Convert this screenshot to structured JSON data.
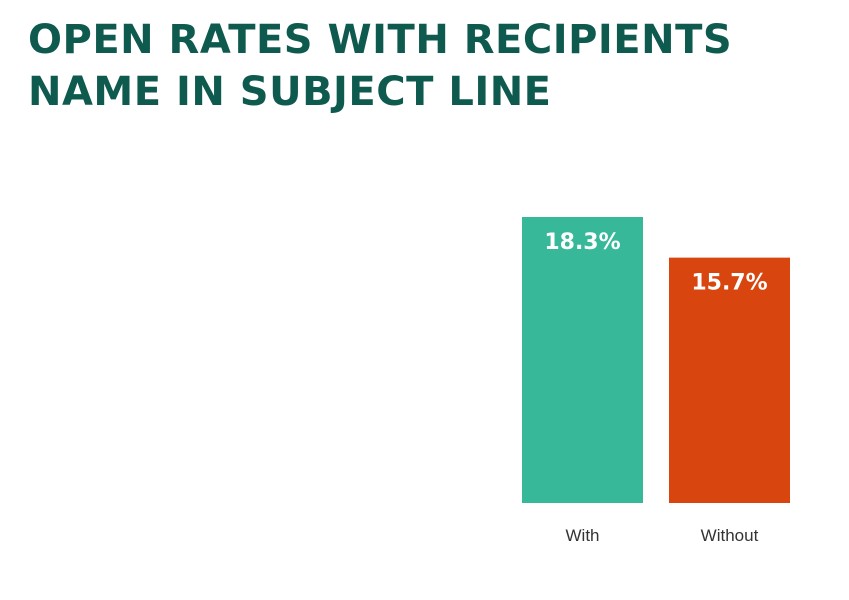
{
  "title_lines": [
    "OPEN RATES WITH RECIPIENTS",
    "NAME IN SUBJECT LINE"
  ],
  "colors": {
    "title": "#0f5a4e",
    "value_label": "#ffffff",
    "category_label": "#333333"
  },
  "chart_data": {
    "type": "bar",
    "title": "OPEN RATES WITH RECIPIENTS NAME IN SUBJECT LINE",
    "categories": [
      "With",
      "Without"
    ],
    "values": [
      18.3,
      15.7
    ],
    "value_labels": [
      "18.3%",
      "15.7%"
    ],
    "bar_colors": [
      "#36b899",
      "#d9450f"
    ],
    "xlabel": "",
    "ylabel": "",
    "ylim": [
      0,
      18.3
    ],
    "grid": false,
    "legend": "none"
  }
}
